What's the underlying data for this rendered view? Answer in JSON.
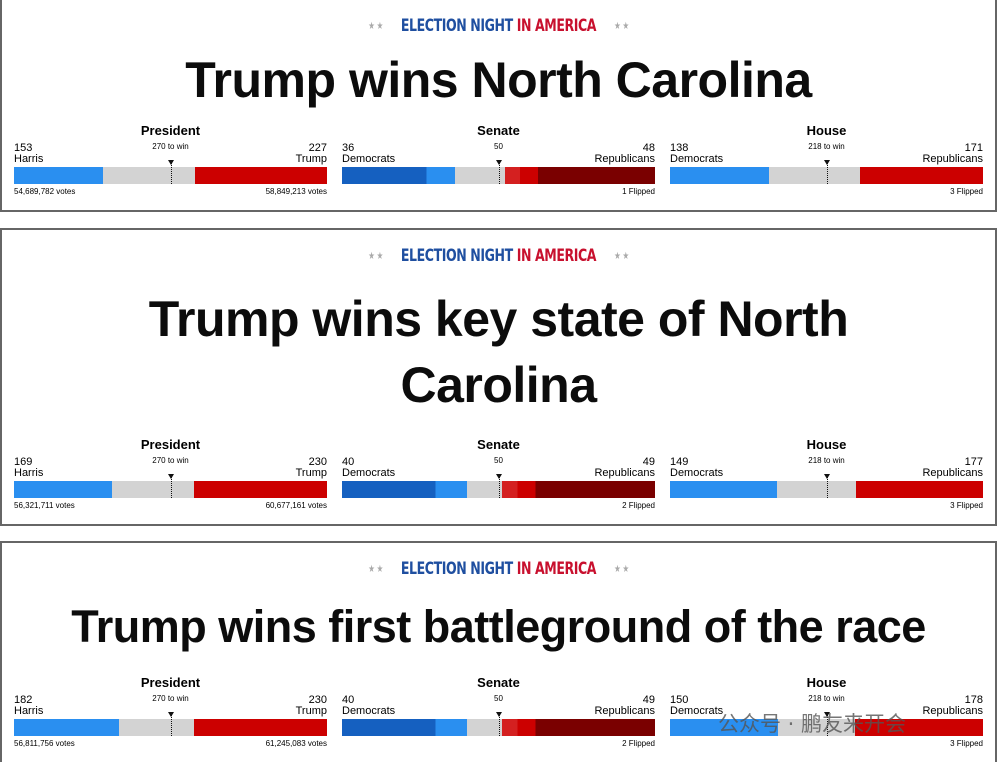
{
  "panels": [
    {
      "kicker_left": "ELECTION NIGHT",
      "kicker_right": "IN AMERICA",
      "headline": "Trump wins North Carolina",
      "races": [
        {
          "label": "President",
          "left_count": 153,
          "left_name": "Harris",
          "threshold": {
            "value": 270,
            "label": "270 to win"
          },
          "right_count": 227,
          "right_name": "Trump",
          "left_note": "54,689,782 votes",
          "right_note": "58,849,213 votes"
        },
        {
          "label": "Senate",
          "left_count": 36,
          "left_name": "Democrats",
          "threshold": 50,
          "right_count": 48,
          "right_name": "Republicans",
          "right_note": "1 Flipped"
        },
        {
          "label": "House",
          "left_count": 138,
          "left_name": "Democrats",
          "threshold": {
            "value": 218,
            "label": "218 to win"
          },
          "right_count": 171,
          "right_name": "Republicans",
          "right_note": "3 Flipped"
        }
      ]
    },
    {
      "kicker_left": "ELECTION NIGHT",
      "kicker_right": "IN AMERICA",
      "headline": "Trump wins key state of North Carolina",
      "races": [
        {
          "label": "President",
          "left_count": 169,
          "left_name": "Harris",
          "threshold": {
            "value": 270,
            "label": "270 to win"
          },
          "right_count": 230,
          "right_name": "Trump",
          "left_note": "56,321,711 votes",
          "right_note": "60,677,161 votes"
        },
        {
          "label": "Senate",
          "left_count": 40,
          "left_name": "Democrats",
          "threshold": 50,
          "right_count": 49,
          "right_name": "Republicans",
          "right_note": "2 Flipped"
        },
        {
          "label": "House",
          "left_count": 149,
          "left_name": "Democrats",
          "threshold": {
            "value": 218,
            "label": "218 to win"
          },
          "right_count": 177,
          "right_name": "Republicans",
          "right_note": "3 Flipped"
        }
      ]
    },
    {
      "kicker_left": "ELECTION NIGHT",
      "kicker_right": "IN AMERICA",
      "headline": "Trump wins first battleground of the race",
      "races": [
        {
          "label": "President",
          "left_count": 182,
          "left_name": "Harris",
          "threshold": {
            "value": 270,
            "label": "270 to win"
          },
          "right_count": 230,
          "right_name": "Trump",
          "left_note": "56,811,756 votes",
          "right_note": "61,245,083 votes"
        },
        {
          "label": "Senate",
          "left_count": 40,
          "left_name": "Democrats",
          "threshold": 50,
          "right_count": 49,
          "right_name": "Republicans",
          "right_note": "2 Flipped"
        },
        {
          "label": "House",
          "left_count": 150,
          "left_name": "Democrats",
          "threshold": {
            "value": 218,
            "label": "218 to win"
          },
          "right_count": 178,
          "right_name": "Republicans",
          "right_note": "3 Flipped"
        }
      ]
    }
  ],
  "watermark": "公众号 · 鹏友来开会"
}
